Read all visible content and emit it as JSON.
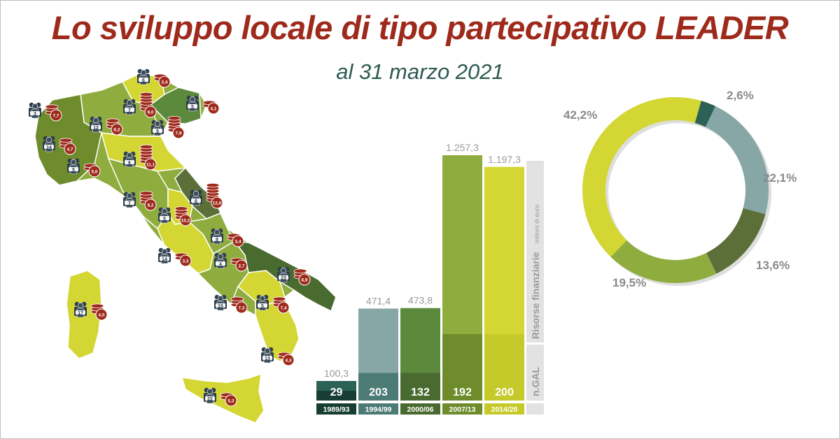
{
  "title": "Lo sviluppo locale di tipo partecipativo LEADER",
  "subtitle": "al 31 marzo 2021",
  "colors": {
    "title": "#9e2a1c",
    "subtitle": "#2d5a50",
    "coin": "#9e2a1c",
    "people": "#2f3f4c"
  },
  "map_labels": [
    {
      "gal": "6",
      "fund": "3,4"
    },
    {
      "gal": "3",
      "fund": "7,7"
    },
    {
      "gal": "7",
      "fund": "9,0"
    },
    {
      "gal": "5",
      "fund": "4,1"
    },
    {
      "gal": "12",
      "fund": "6,2"
    },
    {
      "gal": "9",
      "fund": "7,9"
    },
    {
      "gal": "14",
      "fund": "4,7"
    },
    {
      "gal": "5",
      "fund": "5,0"
    },
    {
      "gal": "6",
      "fund": "11,1"
    },
    {
      "gal": "6",
      "fund": "12,6"
    },
    {
      "gal": "7",
      "fund": "8,2"
    },
    {
      "gal": "5",
      "fund": "10,2"
    },
    {
      "gal": "8",
      "fund": "3,4"
    },
    {
      "gal": "14",
      "fund": "3,3"
    },
    {
      "gal": "4",
      "fund": "2,7"
    },
    {
      "gal": "23",
      "fund": "6,9"
    },
    {
      "gal": "17",
      "fund": "4,5"
    },
    {
      "gal": "15",
      "fund": "7,3"
    },
    {
      "gal": "5",
      "fund": "7,4"
    },
    {
      "gal": "13",
      "fund": "4,3"
    },
    {
      "gal": "22",
      "fund": "5,3"
    }
  ],
  "chart_data": [
    {
      "type": "bar",
      "categories": [
        "1989/93",
        "1994/99",
        "2000/06",
        "2007/13",
        "2014/20"
      ],
      "series": [
        {
          "name": "Risorse finanziarie milioni di euro",
          "values": [
            100.3,
            471.4,
            473.8,
            1257.3,
            1197.3
          ],
          "labels": [
            "100,3",
            "471,4",
            "473,8",
            "1.257,3",
            "1.197,3"
          ]
        },
        {
          "name": "n.GAL",
          "values": [
            29,
            203,
            132,
            192,
            200
          ],
          "labels": [
            "29",
            "203",
            "132",
            "192",
            "200"
          ]
        }
      ],
      "colors_top": [
        "#2c6155",
        "#87a6a6",
        "#5c8a3c",
        "#8fad3e",
        "#d3d633"
      ],
      "colors_bottom": [
        "#183d33",
        "#4c7b76",
        "#4a6b2f",
        "#6e8c2b",
        "#c6c92a"
      ],
      "axis_label_main": "Risorse finanziarie",
      "axis_label_unit": "milioni di euro",
      "axis_label_gal": "n.GAL"
    },
    {
      "type": "pie",
      "labels": [
        "2,6%",
        "22,1%",
        "13,6%",
        "19,5%",
        "42,2%"
      ],
      "values": [
        2.6,
        22.1,
        13.6,
        19.5,
        42.2
      ],
      "colors": [
        "#2c6155",
        "#87a6a6",
        "#5c6f38",
        "#8fad3e",
        "#d3d633"
      ]
    }
  ]
}
